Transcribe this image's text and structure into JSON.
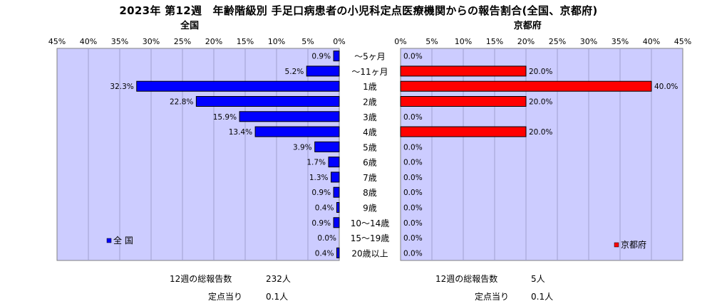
{
  "title": "2023年 第12週　年齢階級別 手足口病患者の小児科定点医療機関からの報告割合(全国、京都府)",
  "chart_data": [
    {
      "type": "bar",
      "orientation": "horizontal",
      "direction": "right-to-left",
      "panel_title": "全国",
      "xlim": [
        0,
        45
      ],
      "xticks": [
        "0%",
        "5%",
        "10%",
        "15%",
        "20%",
        "25%",
        "30%",
        "35%",
        "40%",
        "45%"
      ],
      "categories": [
        "～5ヶ月",
        "～11ヶ月",
        "1歳",
        "2歳",
        "3歳",
        "4歳",
        "5歳",
        "6歳",
        "7歳",
        "8歳",
        "9歳",
        "10～14歳",
        "15～19歳",
        "20歳以上"
      ],
      "series": [
        {
          "name": "全 国",
          "color": "#0000ff",
          "values": [
            0.9,
            5.2,
            32.3,
            22.8,
            15.9,
            13.4,
            3.9,
            1.7,
            1.3,
            0.9,
            0.4,
            0.9,
            0.0,
            0.4
          ],
          "labels": [
            "0.9%",
            "5.2%",
            "32.3%",
            "22.8%",
            "15.9%",
            "13.4%",
            "3.9%",
            "1.7%",
            "1.3%",
            "0.9%",
            "0.4%",
            "0.9%",
            "0.0%",
            "0.4%"
          ]
        }
      ],
      "legend": "bottom-left",
      "grid": true,
      "plot_background": "#ccccff"
    },
    {
      "type": "bar",
      "orientation": "horizontal",
      "direction": "left-to-right",
      "panel_title": "京都府",
      "xlim": [
        0,
        45
      ],
      "xticks": [
        "0%",
        "5%",
        "10%",
        "15%",
        "20%",
        "25%",
        "30%",
        "35%",
        "40%",
        "45%"
      ],
      "categories": [
        "～5ヶ月",
        "～11ヶ月",
        "1歳",
        "2歳",
        "3歳",
        "4歳",
        "5歳",
        "6歳",
        "7歳",
        "8歳",
        "9歳",
        "10～14歳",
        "15～19歳",
        "20歳以上"
      ],
      "series": [
        {
          "name": "京都府",
          "color": "#ff0000",
          "values": [
            0.0,
            20.0,
            40.0,
            20.0,
            0.0,
            20.0,
            0.0,
            0.0,
            0.0,
            0.0,
            0.0,
            0.0,
            0.0,
            0.0
          ],
          "labels": [
            "0.0%",
            "20.0%",
            "40.0%",
            "20.0%",
            "0.0%",
            "20.0%",
            "0.0%",
            "0.0%",
            "0.0%",
            "0.0%",
            "0.0%",
            "0.0%",
            "0.0%",
            "0.0%"
          ]
        }
      ],
      "legend": "bottom-right",
      "grid": true,
      "plot_background": "#ccccff"
    }
  ],
  "footer": {
    "left": {
      "reports_label": "12週の総報告数",
      "reports_value": "232人",
      "per_site_label": "定点当り",
      "per_site_value": "0.1人"
    },
    "right": {
      "reports_label": "12週の総報告数",
      "reports_value": "5人",
      "per_site_label": "定点当り",
      "per_site_value": "0.1人"
    }
  }
}
